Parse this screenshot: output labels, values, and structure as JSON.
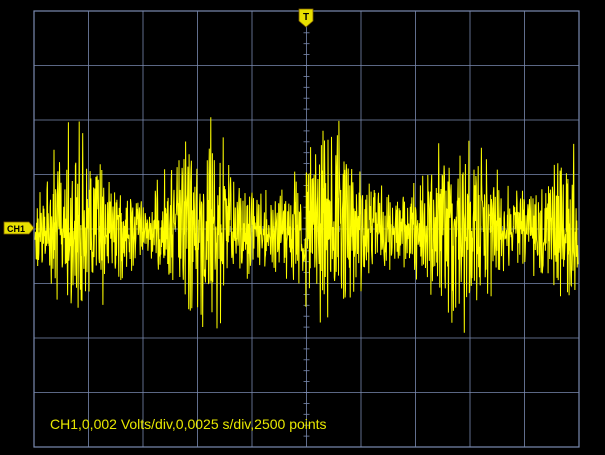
{
  "trigger": {
    "marker_label": "T"
  },
  "channel": {
    "marker_label": "CH1",
    "trace_color": "#ffff00",
    "marker_color": "#e8e000"
  },
  "grid": {
    "divisions_x": 10,
    "divisions_y": 8,
    "color": "#7a8ab0",
    "background": "#000000"
  },
  "status": {
    "readout": "CH1,0,002 Volts/div,0,0025 s/div,2500 points"
  }
}
